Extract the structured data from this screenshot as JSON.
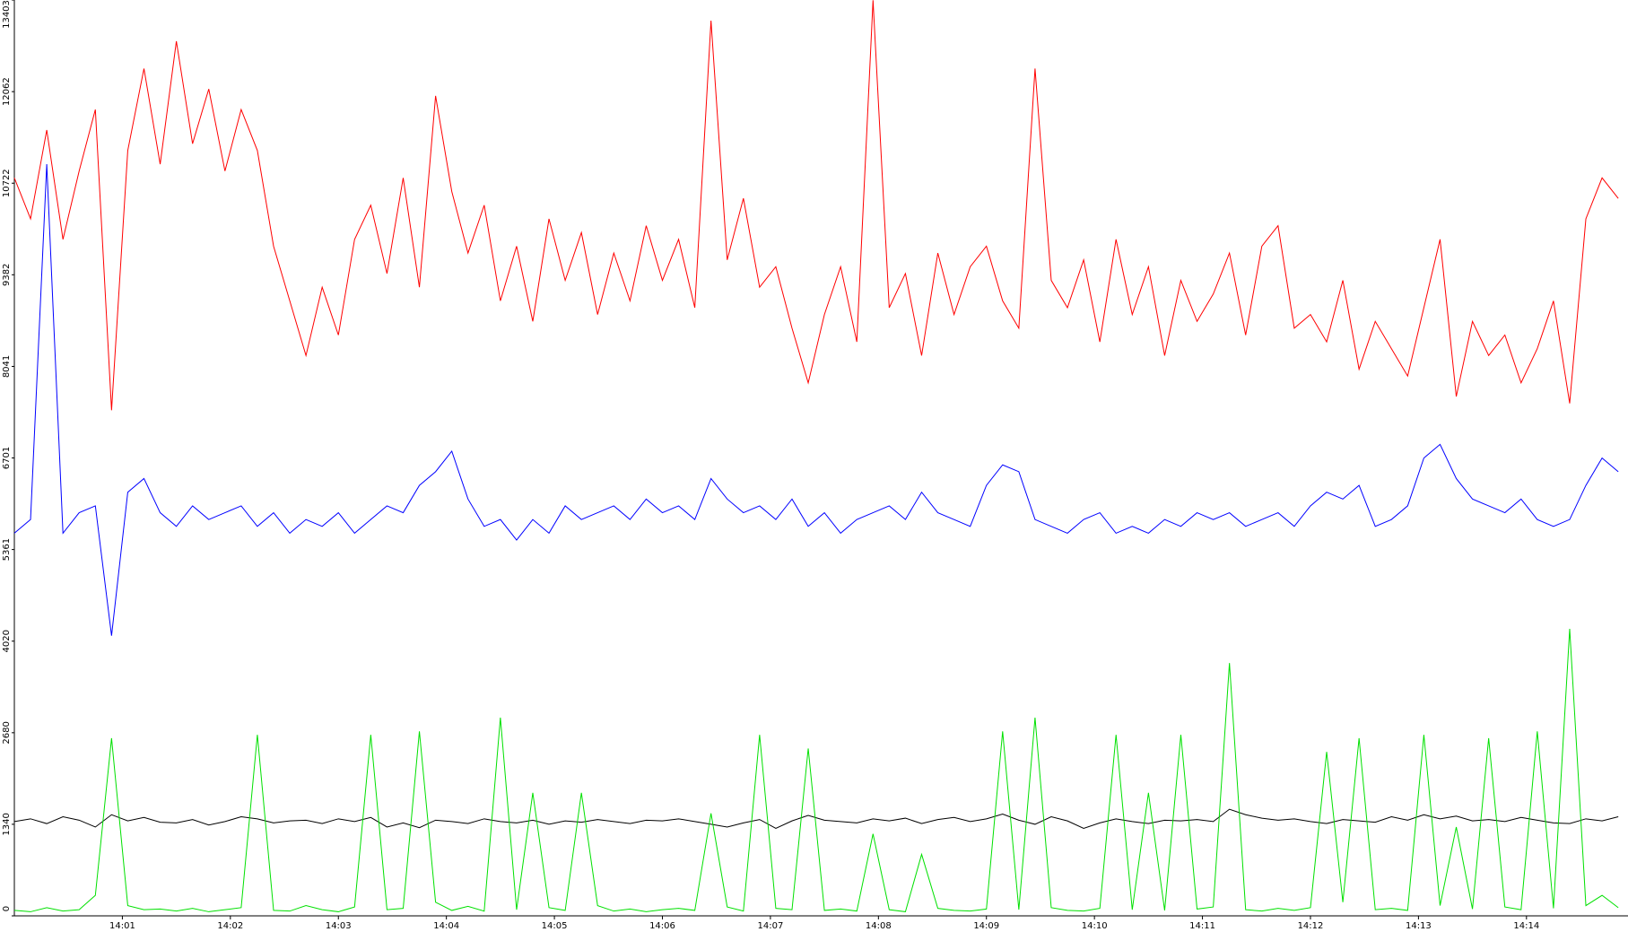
{
  "chart_data": {
    "type": "line",
    "xlim": [
      0,
      14.94
    ],
    "xticks": [
      {
        "value": 1,
        "label": "14:01"
      },
      {
        "value": 2,
        "label": "14:02"
      },
      {
        "value": 3,
        "label": "14:03"
      },
      {
        "value": 4,
        "label": "14:04"
      },
      {
        "value": 5,
        "label": "14:05"
      },
      {
        "value": 6,
        "label": "14:06"
      },
      {
        "value": 7,
        "label": "14:07"
      },
      {
        "value": 8,
        "label": "14:08"
      },
      {
        "value": 9,
        "label": "14:09"
      },
      {
        "value": 10,
        "label": "14:10"
      },
      {
        "value": 11,
        "label": "14:11"
      },
      {
        "value": 12,
        "label": "14:12"
      },
      {
        "value": 13,
        "label": "14:13"
      },
      {
        "value": 14,
        "label": "14:14"
      }
    ],
    "ylim": [
      0,
      13403
    ],
    "yticks": [
      0,
      1340,
      2680,
      4020,
      5361,
      6701,
      8041,
      9382,
      10722,
      12062,
      13403
    ],
    "grid": false,
    "x": [
      0,
      0.15,
      0.3,
      0.45,
      0.6,
      0.75,
      0.9,
      1.05,
      1.2,
      1.35,
      1.5,
      1.65,
      1.8,
      1.95,
      2.1,
      2.25,
      2.4,
      2.55,
      2.7,
      2.85,
      3,
      3.15,
      3.3,
      3.45,
      3.6,
      3.75,
      3.9,
      4.05,
      4.2,
      4.35,
      4.5,
      4.65,
      4.8,
      4.95,
      5.1,
      5.25,
      5.4,
      5.55,
      5.7,
      5.85,
      6,
      6.15,
      6.3,
      6.45,
      6.6,
      6.75,
      6.9,
      7.05,
      7.2,
      7.35,
      7.5,
      7.65,
      7.8,
      7.95,
      8.1,
      8.25,
      8.4,
      8.55,
      8.7,
      8.85,
      9,
      9.15,
      9.3,
      9.45,
      9.6,
      9.75,
      9.9,
      10.05,
      10.2,
      10.35,
      10.5,
      10.65,
      10.8,
      10.95,
      11.1,
      11.25,
      11.4,
      11.55,
      11.7,
      11.85,
      12,
      12.15,
      12.3,
      12.45,
      12.6,
      12.75,
      12.9,
      13.05,
      13.2,
      13.35,
      13.5,
      13.65,
      13.8,
      13.95,
      14.1,
      14.25,
      14.4,
      14.55,
      14.7,
      14.85
    ],
    "series": [
      {
        "color": "#ff0000",
        "values": [
          10800,
          10200,
          11500,
          9900,
          10900,
          11800,
          7400,
          11200,
          12400,
          11000,
          12800,
          11300,
          12100,
          10900,
          11800,
          11200,
          9800,
          9000,
          8200,
          9200,
          8500,
          9900,
          10400,
          9400,
          10800,
          9200,
          12000,
          10600,
          9700,
          10400,
          9000,
          9800,
          8700,
          10200,
          9300,
          10000,
          8800,
          9700,
          9000,
          10100,
          9300,
          9900,
          8900,
          13100,
          9600,
          10500,
          9200,
          9500,
          8600,
          7800,
          8800,
          9500,
          8400,
          13400,
          8900,
          9400,
          8200,
          9700,
          8800,
          9500,
          9800,
          9000,
          8600,
          12400,
          9300,
          8900,
          9600,
          8400,
          9900,
          8800,
          9500,
          8200,
          9300,
          8700,
          9100,
          9700,
          8500,
          9800,
          10100,
          8600,
          8800,
          8400,
          9300,
          8000,
          8700,
          8300,
          7900,
          8900,
          9900,
          7600,
          8700,
          8200,
          8500,
          7800,
          8300,
          9000,
          7500,
          10200,
          10800,
          10500
        ]
      },
      {
        "color": "#0000ff",
        "values": [
          5600,
          5800,
          11000,
          5600,
          5900,
          6000,
          4100,
          6200,
          6400,
          5900,
          5700,
          6000,
          5800,
          5900,
          6000,
          5700,
          5900,
          5600,
          5800,
          5700,
          5900,
          5600,
          5800,
          6000,
          5900,
          6300,
          6500,
          6800,
          6100,
          5700,
          5800,
          5500,
          5800,
          5600,
          6000,
          5800,
          5900,
          6000,
          5800,
          6100,
          5900,
          6000,
          5800,
          6400,
          6100,
          5900,
          6000,
          5800,
          6100,
          5700,
          5900,
          5600,
          5800,
          5900,
          6000,
          5800,
          6200,
          5900,
          5800,
          5700,
          6300,
          6600,
          6500,
          5800,
          5700,
          5600,
          5800,
          5900,
          5600,
          5700,
          5600,
          5800,
          5700,
          5900,
          5800,
          5900,
          5700,
          5800,
          5900,
          5700,
          6000,
          6200,
          6100,
          6300,
          5700,
          5800,
          6000,
          6700,
          6900,
          6400,
          6100,
          6000,
          5900,
          6100,
          5800,
          5700,
          5800,
          6300,
          6700,
          6500
        ]
      },
      {
        "color": "#000000",
        "values": [
          1380,
          1420,
          1350,
          1450,
          1400,
          1300,
          1480,
          1390,
          1440,
          1370,
          1360,
          1410,
          1330,
          1380,
          1450,
          1420,
          1360,
          1390,
          1400,
          1350,
          1420,
          1380,
          1440,
          1300,
          1360,
          1290,
          1400,
          1380,
          1350,
          1420,
          1380,
          1360,
          1400,
          1340,
          1390,
          1370,
          1410,
          1380,
          1350,
          1400,
          1390,
          1420,
          1380,
          1340,
          1300,
          1360,
          1410,
          1280,
          1390,
          1470,
          1400,
          1380,
          1360,
          1420,
          1390,
          1430,
          1350,
          1410,
          1440,
          1380,
          1420,
          1490,
          1400,
          1340,
          1450,
          1390,
          1280,
          1360,
          1420,
          1380,
          1350,
          1400,
          1390,
          1410,
          1380,
          1560,
          1480,
          1430,
          1400,
          1420,
          1380,
          1350,
          1410,
          1390,
          1370,
          1450,
          1400,
          1480,
          1420,
          1460,
          1390,
          1410,
          1380,
          1440,
          1400,
          1360,
          1350,
          1420,
          1390,
          1450
        ]
      },
      {
        "color": "#00e000",
        "values": [
          80,
          60,
          120,
          70,
          90,
          300,
          2600,
          150,
          90,
          100,
          70,
          110,
          60,
          90,
          120,
          2650,
          80,
          70,
          150,
          90,
          60,
          130,
          2650,
          90,
          110,
          2700,
          200,
          80,
          140,
          70,
          2900,
          90,
          1800,
          120,
          80,
          1800,
          150,
          70,
          100,
          60,
          90,
          110,
          80,
          1500,
          130,
          70,
          2650,
          110,
          90,
          2450,
          80,
          100,
          70,
          1200,
          90,
          60,
          900,
          110,
          80,
          70,
          100,
          2700,
          90,
          2900,
          120,
          80,
          70,
          110,
          2650,
          90,
          1800,
          80,
          2650,
          100,
          130,
          3700,
          90,
          70,
          110,
          80,
          120,
          2400,
          200,
          2600,
          90,
          110,
          80,
          2650,
          150,
          1300,
          100,
          2600,
          130,
          90,
          2700,
          110,
          4200,
          150,
          300,
          120
        ]
      }
    ]
  }
}
